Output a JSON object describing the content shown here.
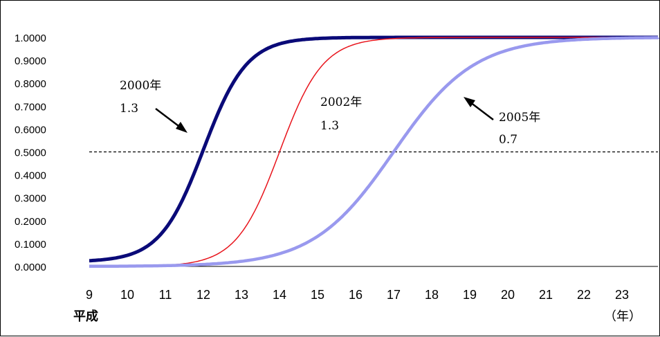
{
  "chart_data": {
    "type": "line",
    "x_era_label": "平成",
    "x_unit_label": "（年）",
    "x_ticks": [
      "9",
      "10",
      "11",
      "12",
      "13",
      "14",
      "15",
      "16",
      "17",
      "18",
      "19",
      "20",
      "21",
      "22",
      "23"
    ],
    "xlim": [
      9,
      24
    ],
    "y_ticks": [
      "0.0000",
      "0.1000",
      "0.2000",
      "0.3000",
      "0.4000",
      "0.5000",
      "0.6000",
      "0.7000",
      "0.8000",
      "0.9000",
      "1.0000"
    ],
    "ylim": [
      0,
      1
    ],
    "reference_line": {
      "y": 0.5,
      "style": "dashed"
    },
    "series": [
      {
        "color": "#0a0a78",
        "midpoint": 12.0,
        "rate": 1.3,
        "width": "thick",
        "points": [
          [
            9,
            0.02
          ],
          [
            9.5,
            0.04
          ],
          [
            10,
            0.07
          ],
          [
            10.5,
            0.13
          ],
          [
            11,
            0.23
          ],
          [
            11.5,
            0.35
          ],
          [
            12,
            0.5
          ],
          [
            12.5,
            0.65
          ],
          [
            13,
            0.77
          ],
          [
            13.5,
            0.87
          ],
          [
            14,
            0.93
          ],
          [
            14.5,
            0.96
          ],
          [
            15,
            0.98
          ],
          [
            15.5,
            0.99
          ],
          [
            16,
            0.995
          ],
          [
            17,
            1.0
          ],
          [
            24,
            1.0
          ]
        ]
      },
      {
        "color": "#e8141c",
        "midpoint": 14.0,
        "rate": 1.3,
        "width": "thin",
        "points": [
          [
            9,
            0.0
          ],
          [
            10,
            0.003
          ],
          [
            11,
            0.015
          ],
          [
            11.5,
            0.03
          ],
          [
            12,
            0.06
          ],
          [
            12.5,
            0.11
          ],
          [
            13,
            0.21
          ],
          [
            13.5,
            0.35
          ],
          [
            14,
            0.5
          ],
          [
            14.5,
            0.65
          ],
          [
            15,
            0.79
          ],
          [
            15.5,
            0.88
          ],
          [
            16,
            0.94
          ],
          [
            16.5,
            0.97
          ],
          [
            17,
            0.985
          ],
          [
            18,
            0.995
          ],
          [
            24,
            1.0
          ]
        ]
      },
      {
        "color": "#9999ee",
        "midpoint": 17.0,
        "rate": 0.7,
        "width": "thick",
        "points": [
          [
            9,
            0.003
          ],
          [
            10,
            0.005
          ],
          [
            11,
            0.01
          ],
          [
            12,
            0.03
          ],
          [
            13,
            0.05
          ],
          [
            14,
            0.1
          ],
          [
            15,
            0.17
          ],
          [
            16,
            0.33
          ],
          [
            17,
            0.5
          ],
          [
            18,
            0.67
          ],
          [
            19,
            0.8
          ],
          [
            20,
            0.89
          ],
          [
            21,
            0.94
          ],
          [
            22,
            0.97
          ],
          [
            23,
            0.985
          ],
          [
            24,
            0.99
          ]
        ]
      }
    ],
    "annotations": [
      {
        "year_label": "2000年",
        "value_label": "1.3",
        "target_series": 0
      },
      {
        "year_label": "2002年",
        "value_label": "1.3",
        "target_series": 1
      },
      {
        "year_label": "2005年",
        "value_label": "0.7",
        "target_series": 2
      }
    ]
  }
}
